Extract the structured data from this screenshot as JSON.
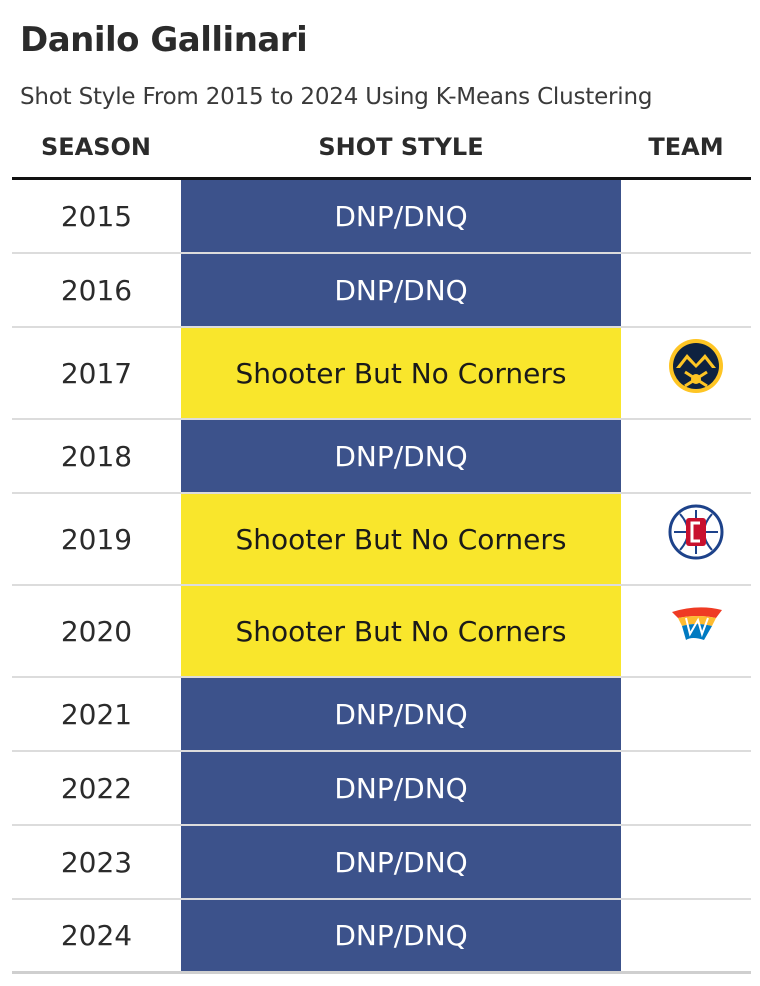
{
  "title": "Danilo Gallinari",
  "subtitle": "Shot Style From 2015 to 2024 Using K-Means Clustering",
  "headers": {
    "season": "SEASON",
    "shot_style": "SHOT STYLE",
    "team": "TEAM"
  },
  "colors": {
    "dnp": "#3c528b",
    "shooter": "#f9e62c",
    "dnp_text": "#ffffff",
    "shooter_text": "#1a1a1a"
  },
  "chart_data": {
    "type": "table",
    "title": "Danilo Gallinari",
    "subtitle": "Shot Style From 2015 to 2024 Using K-Means Clustering",
    "columns": [
      "SEASON",
      "SHOT STYLE",
      "TEAM"
    ],
    "rows": [
      {
        "season": "2015",
        "shot_style": "DNP/DNQ",
        "category": "dnp",
        "team": ""
      },
      {
        "season": "2016",
        "shot_style": "DNP/DNQ",
        "category": "dnp",
        "team": ""
      },
      {
        "season": "2017",
        "shot_style": "Shooter But No Corners",
        "category": "shooter",
        "team": "nuggets-logo"
      },
      {
        "season": "2018",
        "shot_style": "DNP/DNQ",
        "category": "dnp",
        "team": ""
      },
      {
        "season": "2019",
        "shot_style": "Shooter But No Corners",
        "category": "shooter",
        "team": "clippers-logo"
      },
      {
        "season": "2020",
        "shot_style": "Shooter But No Corners",
        "category": "shooter",
        "team": "thunder-logo"
      },
      {
        "season": "2021",
        "shot_style": "DNP/DNQ",
        "category": "dnp",
        "team": ""
      },
      {
        "season": "2022",
        "shot_style": "DNP/DNQ",
        "category": "dnp",
        "team": ""
      },
      {
        "season": "2023",
        "shot_style": "DNP/DNQ",
        "category": "dnp",
        "team": ""
      },
      {
        "season": "2024",
        "shot_style": "DNP/DNQ",
        "category": "dnp",
        "team": ""
      }
    ]
  }
}
